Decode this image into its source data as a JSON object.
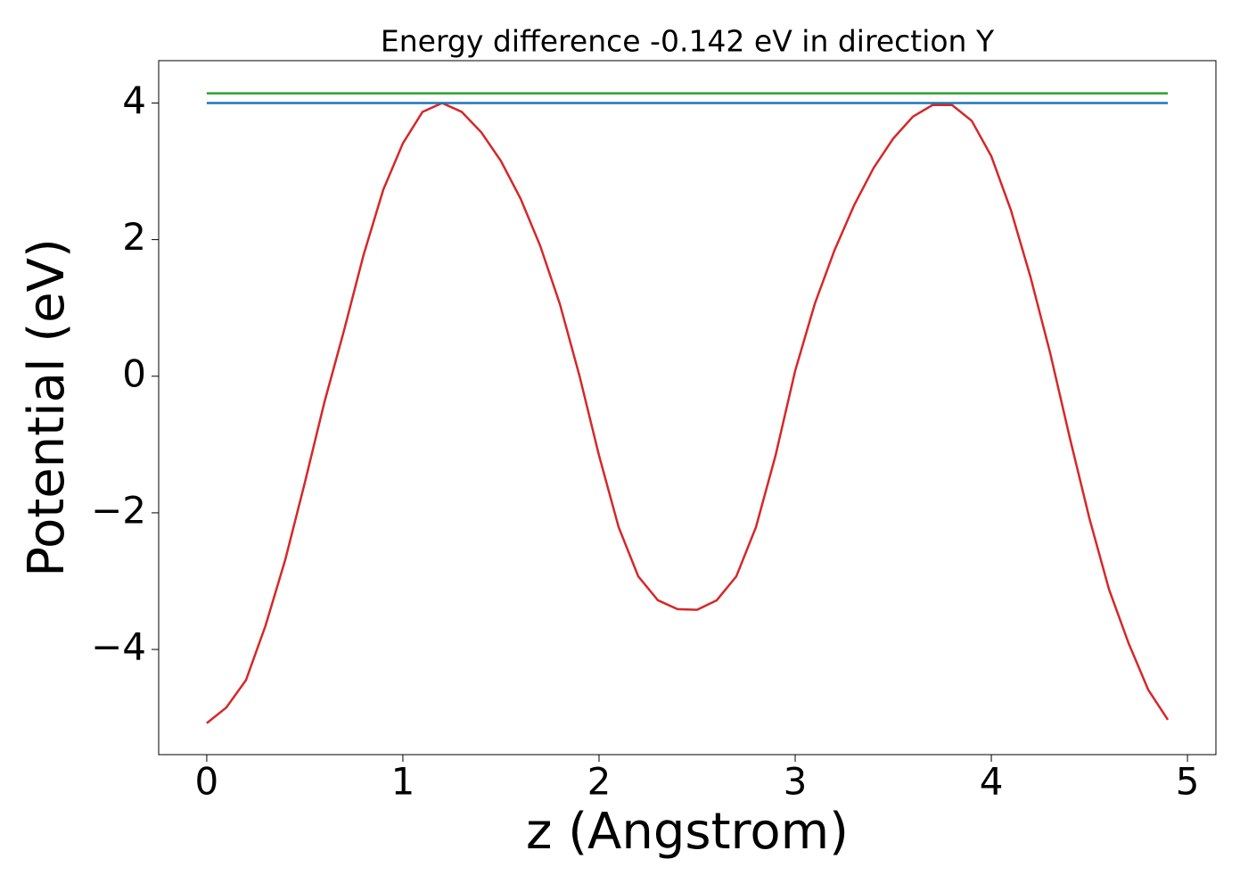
{
  "chart_data": {
    "type": "line",
    "title": "Energy difference -0.142 eV in direction Y",
    "xlabel": "z (Angstrom)",
    "ylabel": "Potential (eV)",
    "xlim": [
      -0.245,
      5.145
    ],
    "ylim": [
      -5.54,
      4.62
    ],
    "xticks": [
      0,
      1,
      2,
      3,
      4,
      5
    ],
    "yticks": [
      {
        "value": -4,
        "label": "−4"
      },
      {
        "value": -2,
        "label": "−2"
      },
      0,
      2,
      4
    ],
    "series": [
      {
        "color": "#d62728",
        "x": [
          0,
          0.1,
          0.2,
          0.3,
          0.4,
          0.5,
          0.6,
          0.7,
          0.8,
          0.9,
          1.0,
          1.1,
          1.2,
          1.3,
          1.4,
          1.5,
          1.6,
          1.7,
          1.8,
          1.9,
          2.0,
          2.1,
          2.2,
          2.3,
          2.4,
          2.5,
          2.6,
          2.7,
          2.8,
          2.9,
          3.0,
          3.1,
          3.2,
          3.3,
          3.4,
          3.5,
          3.6,
          3.7,
          3.8,
          3.9,
          4.0,
          4.1,
          4.2,
          4.3,
          4.4,
          4.5,
          4.6,
          4.7,
          4.8,
          4.9
        ],
        "values": [
          -5.08,
          -4.85,
          -4.45,
          -3.65,
          -2.69,
          -1.56,
          -0.38,
          0.67,
          1.78,
          2.73,
          3.41,
          3.87,
          4.0,
          3.87,
          3.57,
          3.15,
          2.6,
          1.91,
          1.06,
          0.01,
          -1.16,
          -2.21,
          -2.93,
          -3.28,
          -3.41,
          -3.42,
          -3.28,
          -2.93,
          -2.21,
          -1.16,
          0.08,
          1.06,
          1.84,
          2.5,
          3.05,
          3.48,
          3.8,
          3.97,
          3.97,
          3.74,
          3.22,
          2.43,
          1.45,
          0.34,
          -0.9,
          -2.08,
          -3.12,
          -3.91,
          -4.59,
          -5.03
        ]
      },
      {
        "color": "#1f77b4",
        "x": [
          0,
          4.9
        ],
        "values": [
          4.0,
          4.0
        ]
      },
      {
        "color": "#2ca02c",
        "x": [
          0,
          4.9
        ],
        "values": [
          4.142,
          4.142
        ]
      }
    ]
  }
}
